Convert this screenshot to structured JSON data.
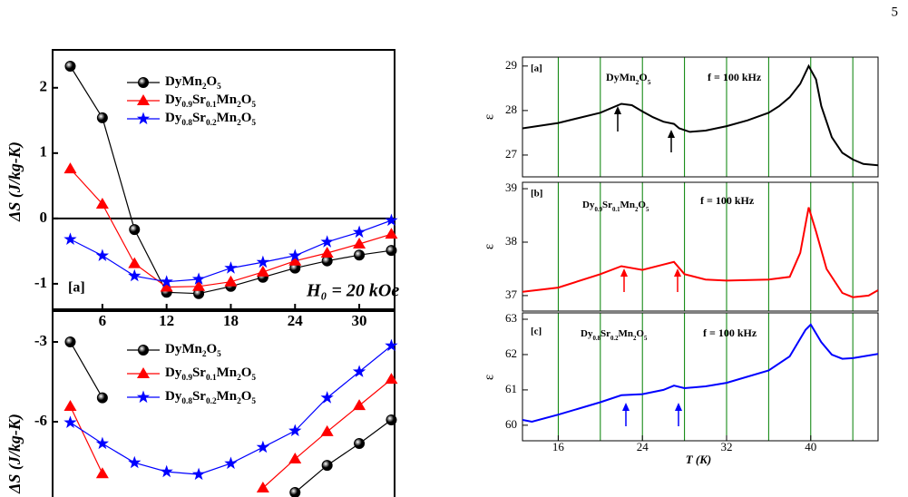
{
  "page_number": "5",
  "chart_data": [
    {
      "type": "line",
      "ylabel": "ΔS (J/kg-K)",
      "legend": true,
      "hline": 0,
      "x": [
        3,
        6,
        9,
        12,
        15,
        18,
        21,
        24,
        27,
        30,
        33
      ],
      "xlim": [
        1.35,
        33.3
      ],
      "ylim": [
        -1.39,
        2.58
      ],
      "xticks": [
        6,
        12,
        18,
        24,
        30
      ],
      "yticks": [
        -1,
        0,
        1,
        2
      ],
      "annotations": [
        "[a]",
        "H₀ = 20 kOe"
      ],
      "series": [
        {
          "name": "DyMn2O5",
          "color": "#000000",
          "marker": "circle",
          "values": [
            2.33,
            1.54,
            -0.17,
            -1.13,
            -1.15,
            -1.04,
            -0.9,
            -0.76,
            -0.65,
            -0.56,
            -0.49
          ]
        },
        {
          "name": "Dy0.9Sr0.1Mn2O5",
          "color": "#ff0000",
          "marker": "triangle",
          "values": [
            0.76,
            0.22,
            -0.69,
            -1.05,
            -1.04,
            -0.97,
            -0.82,
            -0.65,
            -0.53,
            -0.39,
            -0.24
          ]
        },
        {
          "name": "Dy0.8Sr0.2Mn2O5",
          "color": "#0000ff",
          "marker": "star",
          "values": [
            -0.32,
            -0.57,
            -0.88,
            -0.97,
            -0.93,
            -0.76,
            -0.67,
            -0.57,
            -0.36,
            -0.21,
            -0.03
          ]
        }
      ]
    },
    {
      "type": "line",
      "ylabel": "ΔS (J/kg-K)",
      "legend": true,
      "x": [
        3,
        6,
        9,
        12,
        15,
        18,
        21,
        24,
        27,
        30,
        33
      ],
      "xlim": [
        1.35,
        33.3
      ],
      "ylim": [
        -8.83,
        -1.84
      ],
      "yticks": [
        -6,
        -3
      ],
      "series": [
        {
          "name": "DyMn2O5",
          "color": "#000000",
          "marker": "circle",
          "values": [
            -3.0,
            -5.1,
            null,
            null,
            null,
            null,
            null,
            -8.66,
            -7.64,
            -6.82,
            -5.93
          ]
        },
        {
          "name": "Dy0.9Sr0.1Mn2O5",
          "color": "#ff0000",
          "marker": "triangle",
          "values": [
            -5.42,
            -7.95,
            null,
            null,
            null,
            null,
            -8.49,
            -7.4,
            -6.37,
            -5.39,
            -4.4
          ]
        },
        {
          "name": "Dy0.8Sr0.2Mn2O5",
          "color": "#0000ff",
          "marker": "star",
          "values": [
            -6.03,
            -6.82,
            -7.54,
            -7.88,
            -7.98,
            -7.57,
            -6.96,
            -6.34,
            -5.1,
            -4.12,
            -3.14
          ]
        }
      ]
    },
    {
      "type": "curve",
      "ylabel": "ε",
      "grid_color": "#008000",
      "xgrid": [
        16,
        20,
        24,
        28,
        32,
        36,
        40,
        44
      ],
      "xlim": [
        12.6,
        46.4
      ],
      "ylim": [
        26.51,
        29.2
      ],
      "yticks": [
        27,
        28,
        29
      ],
      "annotations": [
        "[a]",
        "DyMn2O5",
        "f = 100 kHz"
      ],
      "x": [
        12.6,
        16,
        20,
        22,
        23,
        24,
        25,
        26,
        27,
        27.5,
        28.5,
        30,
        32,
        34,
        36,
        37,
        38,
        39,
        39.8,
        40.5,
        41,
        42,
        43,
        44,
        45,
        46.4
      ],
      "series": [
        {
          "color": "#000000",
          "values": [
            27.6,
            27.72,
            27.95,
            28.15,
            28.12,
            27.98,
            27.85,
            27.75,
            27.7,
            27.6,
            27.52,
            27.55,
            27.65,
            27.78,
            27.95,
            28.1,
            28.3,
            28.6,
            29.0,
            28.7,
            28.1,
            27.4,
            27.05,
            26.9,
            26.8,
            26.77
          ]
        }
      ]
    },
    {
      "type": "curve",
      "ylabel": "ε",
      "grid_color": "#008000",
      "xgrid": [
        16,
        20,
        24,
        28,
        32,
        36,
        40,
        44
      ],
      "xlim": [
        12.6,
        46.4
      ],
      "ylim": [
        36.71,
        39.12
      ],
      "yticks": [
        37,
        38,
        39
      ],
      "annotations": [
        "[b]",
        "Dy0.9Sr0.1Mn2O5",
        "f = 100 kHz"
      ],
      "x": [
        12.6,
        16,
        20,
        22,
        24,
        26,
        27,
        28,
        30,
        32,
        36,
        38,
        39,
        39.8,
        40.5,
        41.5,
        43,
        44,
        45.5,
        46.4
      ],
      "series": [
        {
          "color": "#ff0000",
          "values": [
            37.07,
            37.15,
            37.4,
            37.55,
            37.48,
            37.58,
            37.63,
            37.4,
            37.3,
            37.28,
            37.3,
            37.35,
            37.8,
            38.65,
            38.2,
            37.5,
            37.05,
            36.97,
            37.0,
            37.1
          ]
        }
      ]
    },
    {
      "type": "curve",
      "ylabel": "ε",
      "xlabel": "T (K)",
      "grid_color": "#008000",
      "xgrid": [
        16,
        20,
        24,
        28,
        32,
        36,
        40,
        44
      ],
      "xlim": [
        12.6,
        46.4
      ],
      "ylim": [
        59.56,
        63.18
      ],
      "xticks": [
        16,
        24,
        32,
        40
      ],
      "yticks": [
        60,
        61,
        62,
        63
      ],
      "annotations": [
        "[c]",
        "Dy0.8Sr0.2Mn2O5",
        "f = 100 kHz"
      ],
      "x": [
        12.6,
        13.5,
        16,
        20,
        22,
        24,
        26,
        27,
        28,
        30,
        32,
        36,
        38,
        39.5,
        40,
        41,
        42,
        43,
        44,
        46.4
      ],
      "series": [
        {
          "color": "#0000ff",
          "values": [
            60.15,
            60.1,
            60.3,
            60.65,
            60.85,
            60.88,
            61.0,
            61.12,
            61.05,
            61.1,
            61.2,
            61.55,
            61.95,
            62.7,
            62.85,
            62.35,
            62.0,
            61.88,
            61.9,
            62.02
          ]
        }
      ]
    }
  ]
}
